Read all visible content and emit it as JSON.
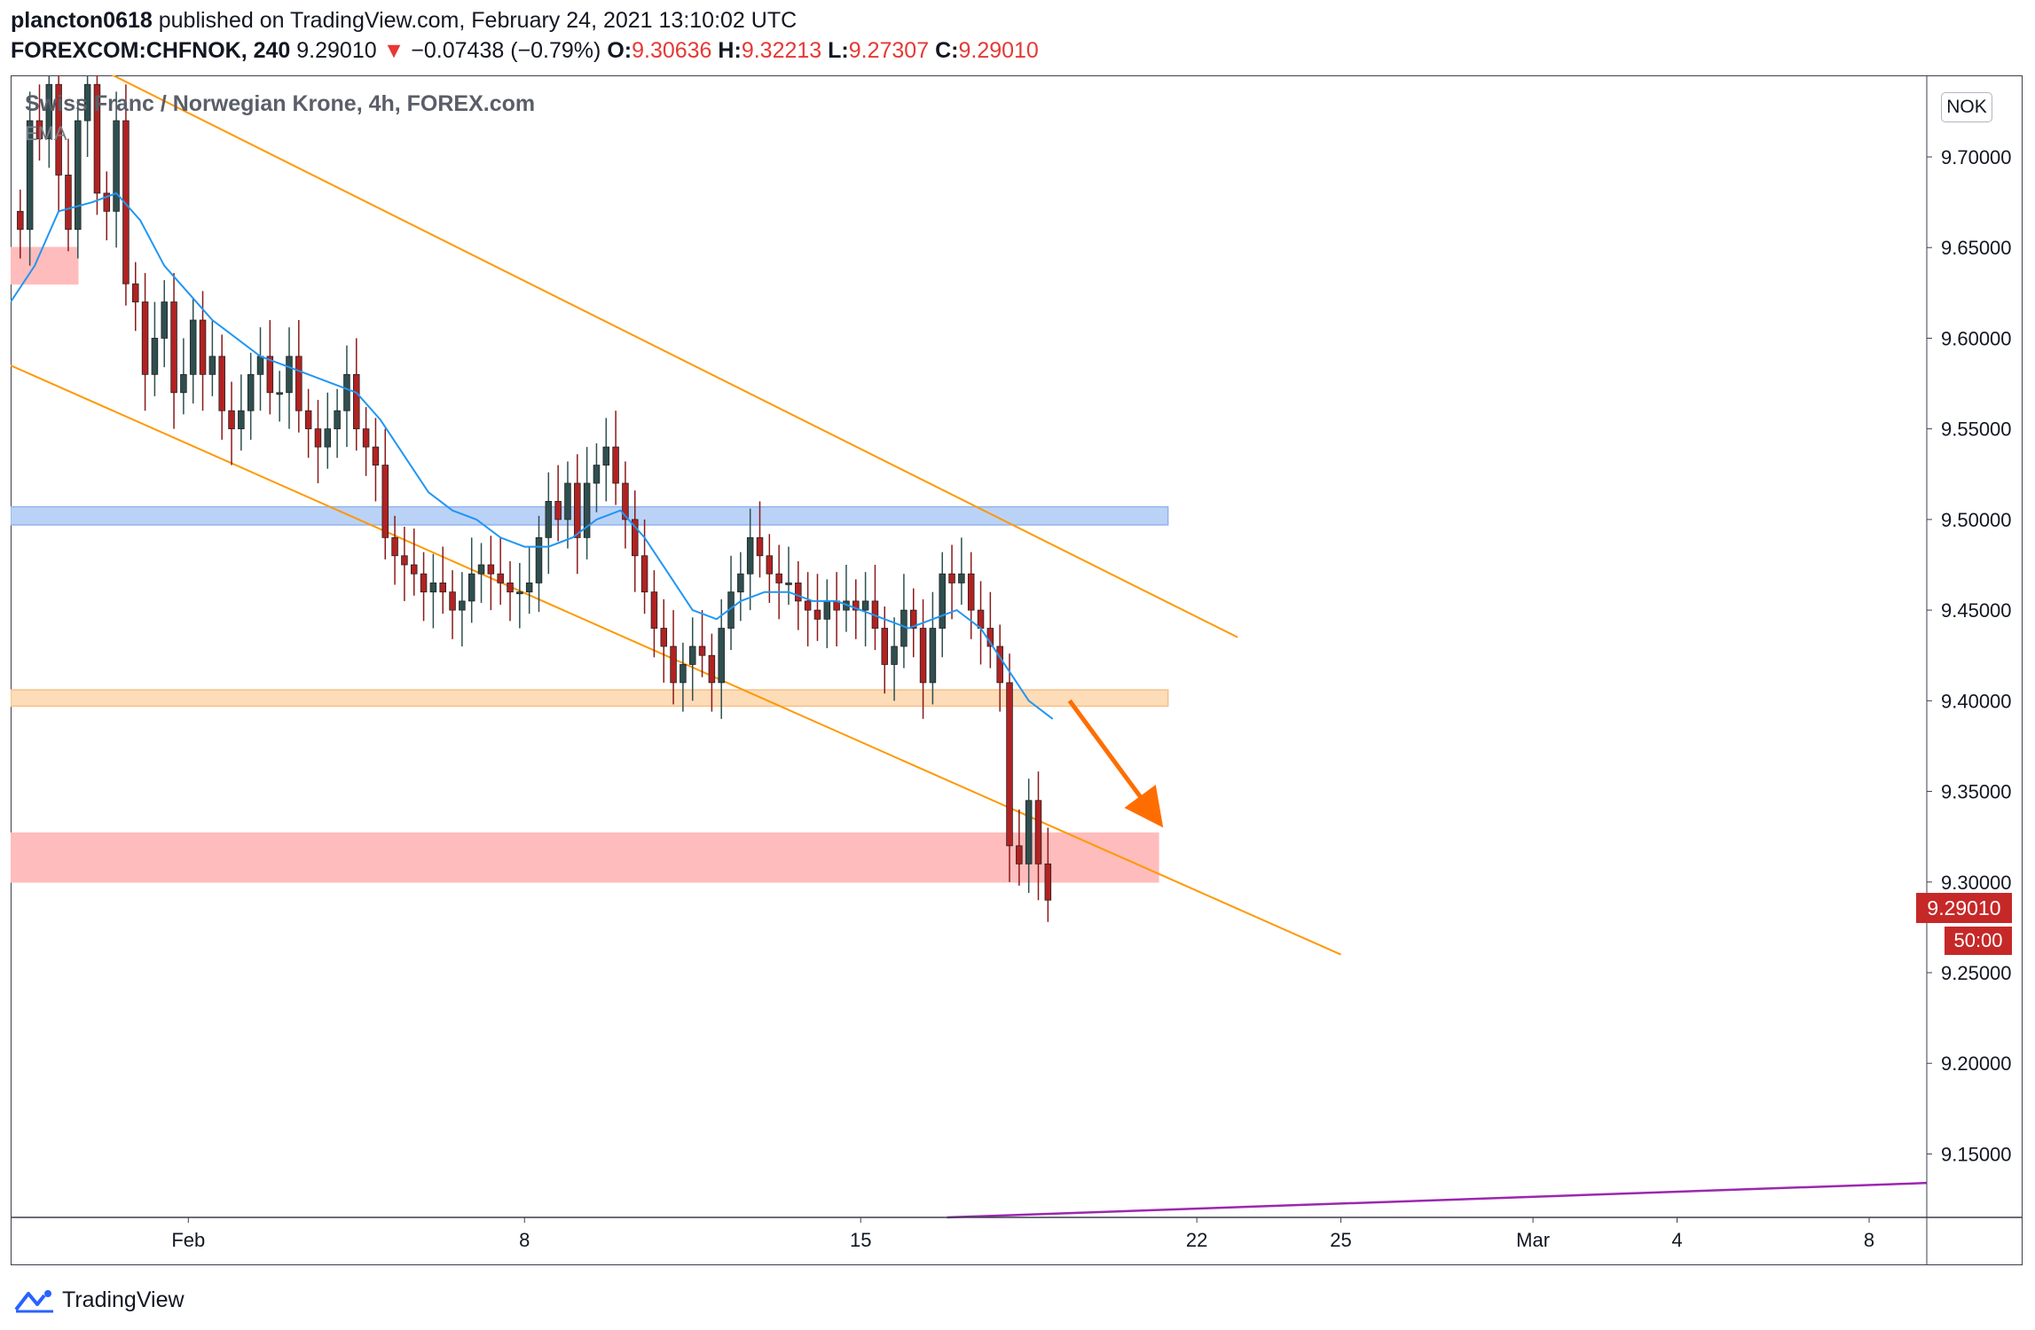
{
  "header": {
    "author": "plancton0618",
    "published_text": "published on TradingView.com, February 24, 2021 13:10:02 UTC",
    "symbol": "FOREXCOM:CHFNOK, 240",
    "last_price": "9.29010",
    "change_arrow": "▼",
    "change": "−0.07438 (−0.79%)",
    "o_label": "O:",
    "o_value": "9.30636",
    "h_label": "H:",
    "h_value": "9.32213",
    "l_label": "L:",
    "l_value": "9.27307",
    "c_label": "C:",
    "c_value": "9.29010"
  },
  "legend": {
    "title": "Swiss Franc / Norwegian Krone, 4h, FOREX.com",
    "indicator": "EMA"
  },
  "axis": {
    "currency_badge": "NOK",
    "price_tag": "9.29010",
    "countdown": "50:00"
  },
  "footer": {
    "brand": "TradingView",
    "logo_icon": "tradingview-logo-icon"
  },
  "colors": {
    "up_candle": "#26a69a",
    "candle_body_up": "#2f4f4f",
    "candle_body_down": "#b22222",
    "ema": "#2196f3",
    "channel": "#ff9800",
    "arrow": "#ff6d00",
    "resistance_zone": "#bbd2f7",
    "support_zone": "#fddcb8",
    "target_zone": "#ffbcbc",
    "trend_line": "#9c27b0"
  },
  "chart_data": {
    "type": "candlestick",
    "title": "Swiss Franc / Norwegian Krone, 4h, FOREX.com",
    "x_tick_labels": [
      "Feb",
      "8",
      "15",
      "22",
      "25",
      "Mar",
      "4",
      "8"
    ],
    "x_tick_days": [
      1,
      8,
      15,
      22,
      25,
      29,
      32,
      36
    ],
    "y_tick_labels": [
      "9.15000",
      "9.20000",
      "9.25000",
      "9.30000",
      "9.35000",
      "9.40000",
      "9.45000",
      "9.50000",
      "9.55000",
      "9.60000",
      "9.65000",
      "9.70000"
    ],
    "ylim": [
      9.115,
      9.745
    ],
    "xlim_days": [
      -2.7,
      37.2
    ],
    "current_price": 9.2901,
    "ohlc_last": {
      "o": 9.30636,
      "h": 9.32213,
      "l": 9.27307,
      "c": 9.2901
    },
    "candles": [
      {
        "day": -2.5,
        "c": 9.66
      },
      {
        "day": -2.3,
        "c": 9.72
      },
      {
        "day": -2.1,
        "c": 9.71
      },
      {
        "day": -1.9,
        "c": 9.74
      },
      {
        "day": -1.7,
        "c": 9.69
      },
      {
        "day": -1.5,
        "c": 9.66
      },
      {
        "day": -1.3,
        "c": 9.72
      },
      {
        "day": -1.1,
        "c": 9.74
      },
      {
        "day": -0.9,
        "c": 9.68
      },
      {
        "day": -0.7,
        "c": 9.67
      },
      {
        "day": -0.5,
        "c": 9.72
      },
      {
        "day": -0.3,
        "c": 9.63
      },
      {
        "day": -0.1,
        "c": 9.62
      },
      {
        "day": 0.1,
        "c": 9.58
      },
      {
        "day": 0.3,
        "c": 9.6
      },
      {
        "day": 0.5,
        "c": 9.62
      },
      {
        "day": 0.7,
        "c": 9.57
      },
      {
        "day": 0.9,
        "c": 9.58
      },
      {
        "day": 1.1,
        "c": 9.61
      },
      {
        "day": 1.3,
        "c": 9.58
      },
      {
        "day": 1.5,
        "c": 9.59
      },
      {
        "day": 1.7,
        "c": 9.56
      },
      {
        "day": 1.9,
        "c": 9.55
      },
      {
        "day": 2.1,
        "c": 9.56
      },
      {
        "day": 2.3,
        "c": 9.58
      },
      {
        "day": 2.5,
        "c": 9.59
      },
      {
        "day": 2.7,
        "c": 9.57
      },
      {
        "day": 2.9,
        "c": 9.57
      },
      {
        "day": 3.1,
        "c": 9.59
      },
      {
        "day": 3.3,
        "c": 9.56
      },
      {
        "day": 3.5,
        "c": 9.55
      },
      {
        "day": 3.7,
        "c": 9.54
      },
      {
        "day": 3.9,
        "c": 9.55
      },
      {
        "day": 4.1,
        "c": 9.56
      },
      {
        "day": 4.3,
        "c": 9.58
      },
      {
        "day": 4.5,
        "c": 9.55
      },
      {
        "day": 4.7,
        "c": 9.54
      },
      {
        "day": 4.9,
        "c": 9.53
      },
      {
        "day": 5.1,
        "c": 9.49
      },
      {
        "day": 5.3,
        "c": 9.48
      },
      {
        "day": 5.5,
        "c": 9.475
      },
      {
        "day": 5.7,
        "c": 9.47
      },
      {
        "day": 5.9,
        "c": 9.46
      },
      {
        "day": 6.1,
        "c": 9.465
      },
      {
        "day": 6.3,
        "c": 9.46
      },
      {
        "day": 6.5,
        "c": 9.45
      },
      {
        "day": 6.7,
        "c": 9.455
      },
      {
        "day": 6.9,
        "c": 9.47
      },
      {
        "day": 7.1,
        "c": 9.475
      },
      {
        "day": 7.3,
        "c": 9.47
      },
      {
        "day": 7.5,
        "c": 9.465
      },
      {
        "day": 7.7,
        "c": 9.46
      },
      {
        "day": 7.9,
        "c": 9.46
      },
      {
        "day": 8.1,
        "c": 9.465
      },
      {
        "day": 8.3,
        "c": 9.49
      },
      {
        "day": 8.5,
        "c": 9.51
      },
      {
        "day": 8.7,
        "c": 9.5
      },
      {
        "day": 8.9,
        "c": 9.52
      },
      {
        "day": 9.1,
        "c": 9.49
      },
      {
        "day": 9.3,
        "c": 9.52
      },
      {
        "day": 9.5,
        "c": 9.53
      },
      {
        "day": 9.7,
        "c": 9.54
      },
      {
        "day": 9.9,
        "c": 9.52
      },
      {
        "day": 10.1,
        "c": 9.5
      },
      {
        "day": 10.3,
        "c": 9.48
      },
      {
        "day": 10.5,
        "c": 9.46
      },
      {
        "day": 10.7,
        "c": 9.44
      },
      {
        "day": 10.9,
        "c": 9.43
      },
      {
        "day": 11.1,
        "c": 9.41
      },
      {
        "day": 11.3,
        "c": 9.42
      },
      {
        "day": 11.5,
        "c": 9.43
      },
      {
        "day": 11.7,
        "c": 9.425
      },
      {
        "day": 11.9,
        "c": 9.41
      },
      {
        "day": 12.1,
        "c": 9.44
      },
      {
        "day": 12.3,
        "c": 9.46
      },
      {
        "day": 12.5,
        "c": 9.47
      },
      {
        "day": 12.7,
        "c": 9.49
      },
      {
        "day": 12.9,
        "c": 9.48
      },
      {
        "day": 13.1,
        "c": 9.47
      },
      {
        "day": 13.3,
        "c": 9.465
      },
      {
        "day": 13.5,
        "c": 9.465
      },
      {
        "day": 13.7,
        "c": 9.455
      },
      {
        "day": 13.9,
        "c": 9.45
      },
      {
        "day": 14.1,
        "c": 9.445
      },
      {
        "day": 14.3,
        "c": 9.455
      },
      {
        "day": 14.5,
        "c": 9.45
      },
      {
        "day": 14.7,
        "c": 9.455
      },
      {
        "day": 14.9,
        "c": 9.45
      },
      {
        "day": 15.1,
        "c": 9.455
      },
      {
        "day": 15.3,
        "c": 9.44
      },
      {
        "day": 15.5,
        "c": 9.42
      },
      {
        "day": 15.7,
        "c": 9.43
      },
      {
        "day": 15.9,
        "c": 9.45
      },
      {
        "day": 16.1,
        "c": 9.44
      },
      {
        "day": 16.3,
        "c": 9.41
      },
      {
        "day": 16.5,
        "c": 9.44
      },
      {
        "day": 16.7,
        "c": 9.47
      },
      {
        "day": 16.9,
        "c": 9.465
      },
      {
        "day": 17.1,
        "c": 9.47
      },
      {
        "day": 17.3,
        "c": 9.45
      },
      {
        "day": 17.5,
        "c": 9.44
      },
      {
        "day": 17.7,
        "c": 9.43
      },
      {
        "day": 17.9,
        "c": 9.41
      },
      {
        "day": 18.1,
        "c": 9.32
      },
      {
        "day": 18.3,
        "c": 9.31
      },
      {
        "day": 18.5,
        "c": 9.345
      },
      {
        "day": 18.7,
        "c": 9.31
      },
      {
        "day": 18.9,
        "c": 9.29
      }
    ],
    "ema": [
      [
        -2.7,
        9.62
      ],
      [
        -2.2,
        9.64
      ],
      [
        -1.7,
        9.67
      ],
      [
        -1.0,
        9.675
      ],
      [
        -0.5,
        9.68
      ],
      [
        0.0,
        9.665
      ],
      [
        0.5,
        9.64
      ],
      [
        1.0,
        9.625
      ],
      [
        1.5,
        9.61
      ],
      [
        2.0,
        9.6
      ],
      [
        2.5,
        9.59
      ],
      [
        3.0,
        9.585
      ],
      [
        3.5,
        9.58
      ],
      [
        4.0,
        9.575
      ],
      [
        4.5,
        9.57
      ],
      [
        5.0,
        9.555
      ],
      [
        5.5,
        9.535
      ],
      [
        6.0,
        9.515
      ],
      [
        6.5,
        9.505
      ],
      [
        7.0,
        9.5
      ],
      [
        7.5,
        9.49
      ],
      [
        8.0,
        9.485
      ],
      [
        8.5,
        9.485
      ],
      [
        9.0,
        9.49
      ],
      [
        9.5,
        9.5
      ],
      [
        10.0,
        9.505
      ],
      [
        10.5,
        9.49
      ],
      [
        11.0,
        9.47
      ],
      [
        11.5,
        9.45
      ],
      [
        12.0,
        9.445
      ],
      [
        12.5,
        9.455
      ],
      [
        13.0,
        9.46
      ],
      [
        13.5,
        9.46
      ],
      [
        14.0,
        9.455
      ],
      [
        14.5,
        9.455
      ],
      [
        15.0,
        9.45
      ],
      [
        15.5,
        9.445
      ],
      [
        16.0,
        9.44
      ],
      [
        16.5,
        9.445
      ],
      [
        17.0,
        9.45
      ],
      [
        17.5,
        9.44
      ],
      [
        18.0,
        9.42
      ],
      [
        18.5,
        9.4
      ],
      [
        19.0,
        9.39
      ]
    ],
    "channel_upper": [
      [
        -1.7,
        9.76
      ],
      [
        22.85,
        9.435
      ]
    ],
    "channel_lower": [
      [
        -2.7,
        9.585
      ],
      [
        25.0,
        9.26
      ]
    ],
    "zones": [
      {
        "name": "resistance",
        "y_low": 9.497,
        "y_high": 9.507,
        "x_start": -2.7,
        "x_end": 21.4
      },
      {
        "name": "support",
        "y_low": 9.397,
        "y_high": 9.406,
        "x_start": -2.7,
        "x_end": 21.4
      },
      {
        "name": "target",
        "y_low": 9.3,
        "y_high": 9.327,
        "x_start": -2.7,
        "x_end": 21.2
      },
      {
        "name": "prior",
        "y_low": 9.63,
        "y_high": 9.65,
        "x_start": -2.7,
        "x_end": -1.3
      }
    ],
    "arrow": {
      "from": [
        19.35,
        9.4
      ],
      "to": [
        21.3,
        9.33
      ]
    },
    "purple_line": [
      [
        16.8,
        9.115
      ],
      [
        37.2,
        9.134
      ]
    ],
    "grid": false,
    "legend_position": "top-left"
  }
}
